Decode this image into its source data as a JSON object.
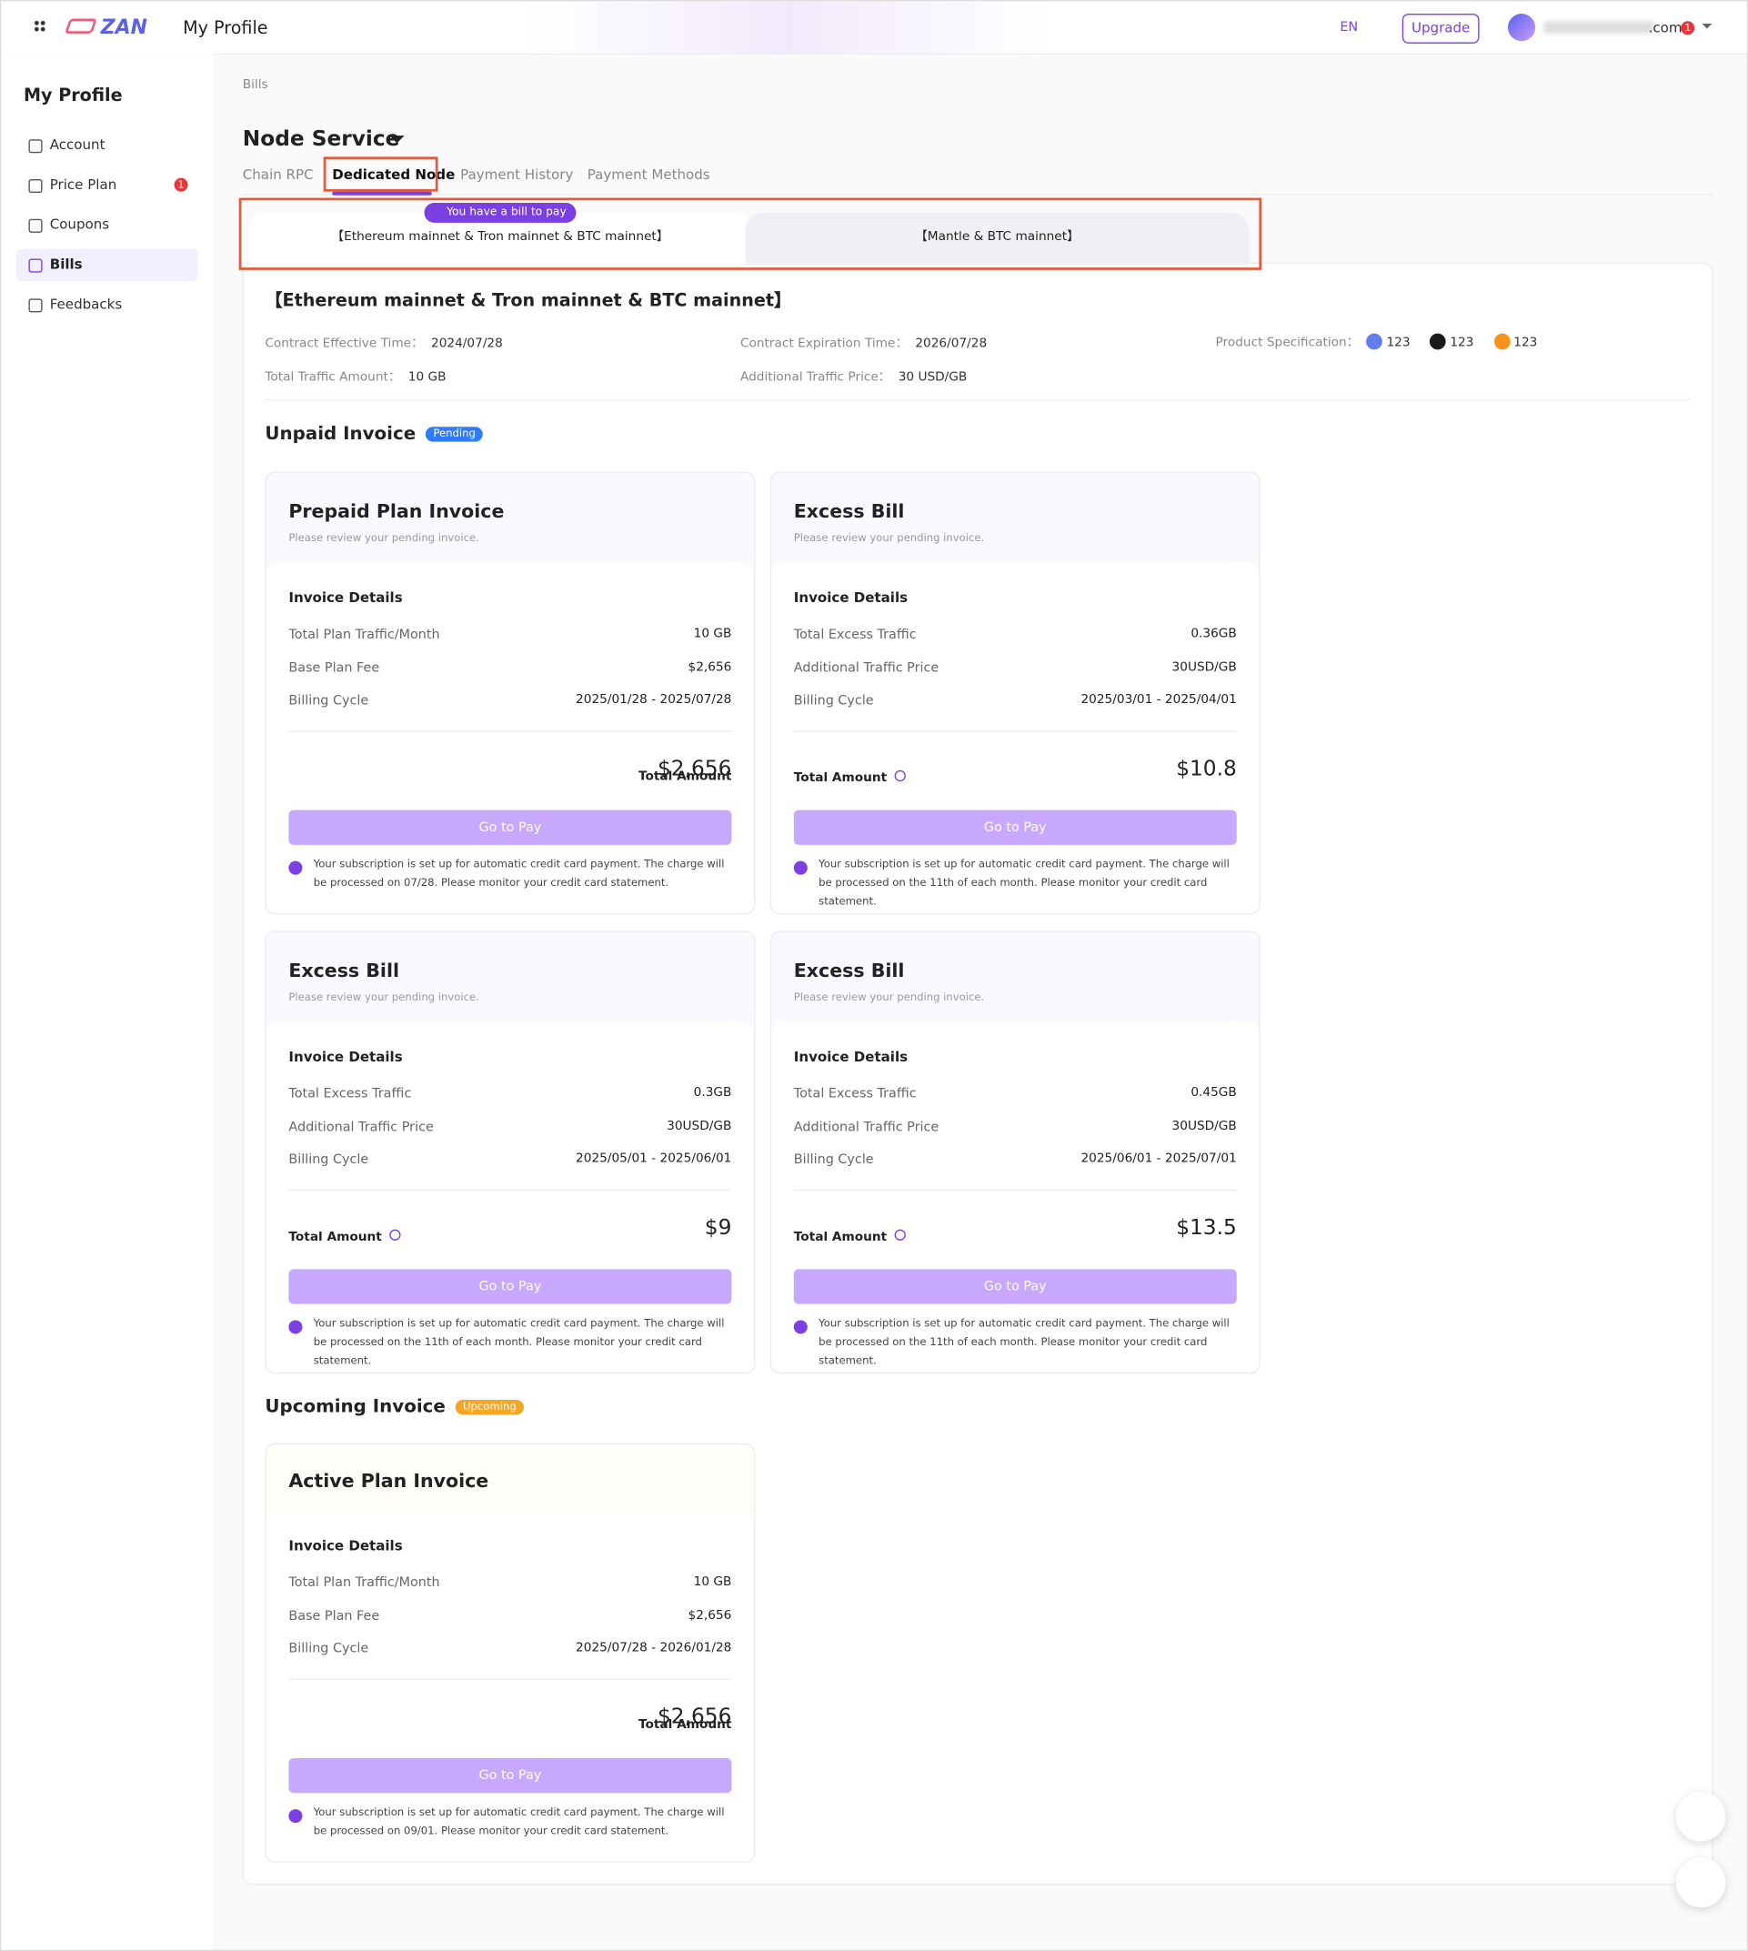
{
  "header": {
    "logo": "ZAN",
    "title": "My Profile",
    "language": "EN",
    "upgrade": "Upgrade",
    "user": ".com",
    "user_badge": "1"
  },
  "sidebar": {
    "title": "My Profile",
    "items": [
      {
        "label": "Account"
      },
      {
        "label": "Price Plan",
        "badge": "1"
      },
      {
        "label": "Coupons"
      },
      {
        "label": "Bills",
        "active": true
      },
      {
        "label": "Feedbacks"
      }
    ]
  },
  "breadcrumb": "Bills",
  "heading": "Node Service",
  "tabs": {
    "items": [
      "Chain RPC",
      "Dedicated Node",
      "Payment History",
      "Payment Methods"
    ],
    "active": 1
  },
  "notice": "You have a bill to pay",
  "subtabs": {
    "items": [
      "【Ethereum mainnet & Tron mainnet & BTC mainnet】",
      "【Mantle & BTC mainnet】"
    ],
    "active": 0
  },
  "contract": {
    "title": "【Ethereum mainnet & Tron mainnet & BTC mainnet】",
    "effective": {
      "label": "Contract Effective Time：",
      "value": "2024/07/28"
    },
    "expiration": {
      "label": "Contract Expiration Time：",
      "value": "2026/07/28"
    },
    "spec": {
      "label": "Product Specification：",
      "values": [
        "123",
        "123",
        "123"
      ]
    },
    "traffic": {
      "label": "Total Traffic Amount：",
      "value": "10 GB"
    },
    "price": {
      "label": "Additional Traffic Price：",
      "value": "30 USD/GB"
    }
  },
  "sections": [
    {
      "title": "Unpaid Invoice",
      "badge": "Pending",
      "invoices": [
        {
          "title": "Prepaid Plan Invoice",
          "subtitle": "Please review your pending invoice.",
          "details_title": "Invoice Details",
          "rows": [
            {
              "label": "Total Plan Traffic/Month",
              "value": "10 GB"
            },
            {
              "label": "Base Plan Fee",
              "value": "$2,656"
            },
            {
              "label": "Billing Cycle",
              "value": "2025/01/28 - 2025/07/28"
            }
          ],
          "total_label": "Total Amount",
          "help": false,
          "total": "$2,656",
          "button": "Go to Pay",
          "note": "Your subscription is set up for automatic credit card payment. The charge will be processed on 07/28. Please monitor your credit card statement."
        },
        {
          "title": "Excess Bill",
          "subtitle": "Please review your pending invoice.",
          "details_title": "Invoice Details",
          "rows": [
            {
              "label": "Total Excess Traffic",
              "value": "0.36GB"
            },
            {
              "label": "Additional Traffic Price",
              "value": "30USD/GB"
            },
            {
              "label": "Billing Cycle",
              "value": "2025/03/01 - 2025/04/01"
            }
          ],
          "total_label": "Total Amount",
          "help": true,
          "total": "$10.8",
          "button": "Go to Pay",
          "note": "Your subscription is set up for automatic credit card payment. The charge will be processed on the 11th of each month. Please monitor your credit card statement."
        },
        {
          "title": "Excess Bill",
          "subtitle": "Please review your pending invoice.",
          "details_title": "Invoice Details",
          "rows": [
            {
              "label": "Total Excess Traffic",
              "value": "0.3GB"
            },
            {
              "label": "Additional Traffic Price",
              "value": "30USD/GB"
            },
            {
              "label": "Billing Cycle",
              "value": "2025/05/01 - 2025/06/01"
            }
          ],
          "total_label": "Total Amount",
          "help": true,
          "total": "$9",
          "button": "Go to Pay",
          "note": "Your subscription is set up for automatic credit card payment. The charge will be processed on the 11th of each month. Please monitor your credit card statement."
        },
        {
          "title": "Excess Bill",
          "subtitle": "Please review your pending invoice.",
          "details_title": "Invoice Details",
          "rows": [
            {
              "label": "Total Excess Traffic",
              "value": "0.45GB"
            },
            {
              "label": "Additional Traffic Price",
              "value": "30USD/GB"
            },
            {
              "label": "Billing Cycle",
              "value": "2025/06/01 - 2025/07/01"
            }
          ],
          "total_label": "Total Amount",
          "help": true,
          "total": "$13.5",
          "button": "Go to Pay",
          "note": "Your subscription is set up for automatic credit card payment. The charge will be processed on the 11th of each month. Please monitor your credit card statement."
        }
      ]
    },
    {
      "title": "Upcoming Invoice",
      "badge": "Upcoming",
      "invoices": [
        {
          "title": "Active Plan Invoice",
          "details_title": "Invoice Details",
          "rows": [
            {
              "label": "Total Plan Traffic/Month",
              "value": "10 GB"
            },
            {
              "label": "Base Plan Fee",
              "value": "$2,656"
            },
            {
              "label": "Billing Cycle",
              "value": "2025/07/28 - 2026/01/28"
            }
          ],
          "total_label": "Total Amount",
          "help": false,
          "total": "$2,656",
          "button": "Go to Pay",
          "note": "Your subscription is set up for automatic credit card payment. The charge will be processed on 09/01. Please monitor your credit card statement."
        }
      ]
    }
  ]
}
